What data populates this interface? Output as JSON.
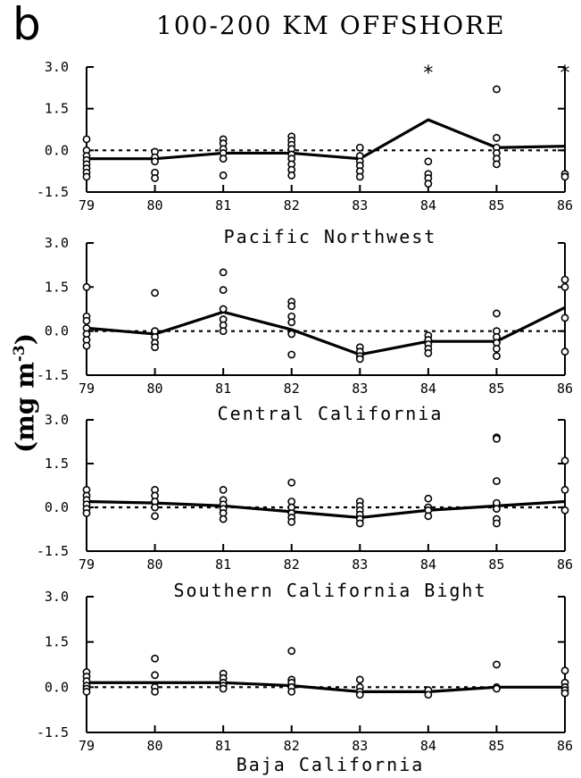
{
  "figure": {
    "panel_letter": "b",
    "title": "100-200 KM OFFSHORE",
    "y_unit_prefix": "(mg m",
    "y_unit_exponent": "-3",
    "y_unit_suffix": ")"
  },
  "chart_data": [
    {
      "type": "scatter",
      "title": "Pacific Northwest",
      "xlim": [
        79,
        86
      ],
      "ylim": [
        -1.5,
        3.0
      ],
      "x_ticks": [
        "79",
        "80",
        "81",
        "82",
        "83",
        "84",
        "85",
        "86"
      ],
      "y_ticks": [
        "3.0",
        "1.5",
        "0.0",
        "-1.5"
      ],
      "reference_line": 0.0,
      "series": [
        {
          "points": [
            [
              79,
              0.4
            ],
            [
              79,
              0.0
            ],
            [
              79,
              -0.2
            ],
            [
              79,
              -0.35
            ],
            [
              79,
              -0.5
            ],
            [
              79,
              -0.65
            ],
            [
              79,
              -0.8
            ],
            [
              79,
              -0.95
            ],
            [
              80,
              -0.05
            ],
            [
              80,
              -0.25
            ],
            [
              80,
              -0.4
            ],
            [
              80,
              -0.8
            ],
            [
              80,
              -1.0
            ],
            [
              81,
              0.4
            ],
            [
              81,
              0.25
            ],
            [
              81,
              0.05
            ],
            [
              81,
              -0.1
            ],
            [
              81,
              -0.3
            ],
            [
              81,
              -0.9
            ],
            [
              82,
              0.5
            ],
            [
              82,
              0.35
            ],
            [
              82,
              0.2
            ],
            [
              82,
              0.05
            ],
            [
              82,
              -0.15
            ],
            [
              82,
              -0.3
            ],
            [
              82,
              -0.5
            ],
            [
              82,
              -0.7
            ],
            [
              82,
              -0.9
            ],
            [
              83,
              0.1
            ],
            [
              83,
              -0.2
            ],
            [
              83,
              -0.4
            ],
            [
              83,
              -0.55
            ],
            [
              83,
              -0.75
            ],
            [
              83,
              -0.95
            ],
            [
              84,
              -0.4
            ],
            [
              84,
              -0.85
            ],
            [
              84,
              -1.0
            ],
            [
              84,
              -1.2
            ],
            [
              85,
              2.2
            ],
            [
              85,
              0.45
            ],
            [
              85,
              0.1
            ],
            [
              85,
              -0.1
            ],
            [
              85,
              -0.3
            ],
            [
              85,
              -0.5
            ],
            [
              86,
              -0.85
            ],
            [
              86,
              -0.95
            ]
          ]
        },
        {
          "line": [
            [
              79,
              -0.3
            ],
            [
              80,
              -0.3
            ],
            [
              81,
              -0.1
            ],
            [
              82,
              -0.1
            ],
            [
              83,
              -0.3
            ],
            [
              84,
              1.1
            ],
            [
              85,
              0.1
            ],
            [
              86,
              0.15
            ]
          ]
        }
      ],
      "off_scale_marks": [
        84,
        86
      ]
    },
    {
      "type": "scatter",
      "title": "Central California",
      "xlim": [
        79,
        86
      ],
      "ylim": [
        -1.5,
        3.0
      ],
      "x_ticks": [
        "79",
        "80",
        "81",
        "82",
        "83",
        "84",
        "85",
        "86"
      ],
      "y_ticks": [
        "3.0",
        "1.5",
        "0.0",
        "-1.5"
      ],
      "reference_line": 0.0,
      "series": [
        {
          "points": [
            [
              79,
              1.5
            ],
            [
              79,
              0.5
            ],
            [
              79,
              0.35
            ],
            [
              79,
              0.1
            ],
            [
              79,
              -0.1
            ],
            [
              79,
              -0.3
            ],
            [
              79,
              -0.5
            ],
            [
              80,
              1.3
            ],
            [
              80,
              0.0
            ],
            [
              80,
              -0.2
            ],
            [
              80,
              -0.4
            ],
            [
              80,
              -0.55
            ],
            [
              81,
              2.0
            ],
            [
              81,
              1.4
            ],
            [
              81,
              0.75
            ],
            [
              81,
              0.4
            ],
            [
              81,
              0.2
            ],
            [
              81,
              0.0
            ],
            [
              82,
              1.0
            ],
            [
              82,
              0.85
            ],
            [
              82,
              0.5
            ],
            [
              82,
              0.3
            ],
            [
              82,
              -0.1
            ],
            [
              82,
              -0.8
            ],
            [
              83,
              -0.55
            ],
            [
              83,
              -0.7
            ],
            [
              83,
              -0.85
            ],
            [
              83,
              -0.95
            ],
            [
              84,
              -0.15
            ],
            [
              84,
              -0.3
            ],
            [
              84,
              -0.45
            ],
            [
              84,
              -0.6
            ],
            [
              84,
              -0.75
            ],
            [
              85,
              0.6
            ],
            [
              85,
              0.0
            ],
            [
              85,
              -0.2
            ],
            [
              85,
              -0.4
            ],
            [
              85,
              -0.6
            ],
            [
              85,
              -0.85
            ],
            [
              86,
              1.75
            ],
            [
              86,
              1.5
            ],
            [
              86,
              0.45
            ],
            [
              86,
              -0.7
            ]
          ]
        },
        {
          "line": [
            [
              79,
              0.1
            ],
            [
              80,
              -0.1
            ],
            [
              81,
              0.65
            ],
            [
              82,
              0.05
            ],
            [
              83,
              -0.8
            ],
            [
              84,
              -0.35
            ],
            [
              85,
              -0.35
            ],
            [
              86,
              0.8
            ]
          ]
        }
      ]
    },
    {
      "type": "scatter",
      "title": "Southern California Bight",
      "xlim": [
        79,
        86
      ],
      "ylim": [
        -1.5,
        3.0
      ],
      "x_ticks": [
        "79",
        "80",
        "81",
        "82",
        "83",
        "84",
        "85",
        "86"
      ],
      "y_ticks": [
        "3.0",
        "1.5",
        "0.0",
        "-1.5"
      ],
      "reference_line": 0.0,
      "series": [
        {
          "points": [
            [
              79,
              0.6
            ],
            [
              79,
              0.4
            ],
            [
              79,
              0.25
            ],
            [
              79,
              0.1
            ],
            [
              79,
              -0.05
            ],
            [
              79,
              -0.2
            ],
            [
              80,
              0.6
            ],
            [
              80,
              0.4
            ],
            [
              80,
              0.2
            ],
            [
              80,
              0.0
            ],
            [
              80,
              -0.3
            ],
            [
              81,
              0.6
            ],
            [
              81,
              0.25
            ],
            [
              81,
              0.1
            ],
            [
              81,
              -0.05
            ],
            [
              81,
              -0.2
            ],
            [
              81,
              -0.4
            ],
            [
              82,
              0.85
            ],
            [
              82,
              0.2
            ],
            [
              82,
              0.0
            ],
            [
              82,
              -0.2
            ],
            [
              82,
              -0.35
            ],
            [
              82,
              -0.5
            ],
            [
              83,
              0.2
            ],
            [
              83,
              0.05
            ],
            [
              83,
              -0.1
            ],
            [
              83,
              -0.25
            ],
            [
              83,
              -0.4
            ],
            [
              83,
              -0.55
            ],
            [
              84,
              0.3
            ],
            [
              84,
              0.0
            ],
            [
              84,
              -0.1
            ],
            [
              84,
              -0.3
            ],
            [
              85,
              2.4
            ],
            [
              85,
              2.35
            ],
            [
              85,
              0.9
            ],
            [
              85,
              0.15
            ],
            [
              85,
              -0.05
            ],
            [
              85,
              -0.4
            ],
            [
              85,
              -0.55
            ],
            [
              86,
              1.6
            ],
            [
              86,
              0.6
            ],
            [
              86,
              -0.1
            ]
          ]
        },
        {
          "line": [
            [
              79,
              0.2
            ],
            [
              80,
              0.15
            ],
            [
              81,
              0.05
            ],
            [
              82,
              -0.15
            ],
            [
              83,
              -0.35
            ],
            [
              84,
              -0.1
            ],
            [
              85,
              0.05
            ],
            [
              86,
              0.2
            ]
          ]
        }
      ]
    },
    {
      "type": "scatter",
      "title": "Baja California",
      "xlim": [
        79,
        86
      ],
      "ylim": [
        -1.5,
        3.0
      ],
      "x_ticks": [
        "79",
        "80",
        "81",
        "82",
        "83",
        "84",
        "85",
        "86"
      ],
      "y_ticks": [
        "3.0",
        "1.5",
        "0.0",
        "-1.5"
      ],
      "reference_line": 0.0,
      "series": [
        {
          "points": [
            [
              79,
              0.5
            ],
            [
              79,
              0.35
            ],
            [
              79,
              0.2
            ],
            [
              79,
              0.05
            ],
            [
              79,
              -0.05
            ],
            [
              79,
              -0.15
            ],
            [
              80,
              0.95
            ],
            [
              80,
              0.4
            ],
            [
              80,
              0.0
            ],
            [
              80,
              -0.15
            ],
            [
              81,
              0.45
            ],
            [
              81,
              0.3
            ],
            [
              81,
              0.15
            ],
            [
              81,
              0.05
            ],
            [
              81,
              -0.05
            ],
            [
              82,
              1.2
            ],
            [
              82,
              0.25
            ],
            [
              82,
              0.15
            ],
            [
              82,
              0.0
            ],
            [
              82,
              -0.15
            ],
            [
              83,
              0.25
            ],
            [
              83,
              0.0
            ],
            [
              83,
              -0.15
            ],
            [
              83,
              -0.25
            ],
            [
              84,
              -0.1
            ],
            [
              84,
              -0.25
            ],
            [
              85,
              0.75
            ],
            [
              85,
              0.0
            ],
            [
              85,
              -0.05
            ],
            [
              86,
              0.55
            ],
            [
              86,
              0.15
            ],
            [
              86,
              0.0
            ],
            [
              86,
              -0.1
            ],
            [
              86,
              -0.2
            ]
          ]
        },
        {
          "line": [
            [
              79,
              0.15
            ],
            [
              80,
              0.15
            ],
            [
              81,
              0.15
            ],
            [
              82,
              0.05
            ],
            [
              83,
              -0.15
            ],
            [
              84,
              -0.15
            ],
            [
              85,
              0.0
            ],
            [
              86,
              0.0
            ]
          ]
        }
      ]
    }
  ]
}
